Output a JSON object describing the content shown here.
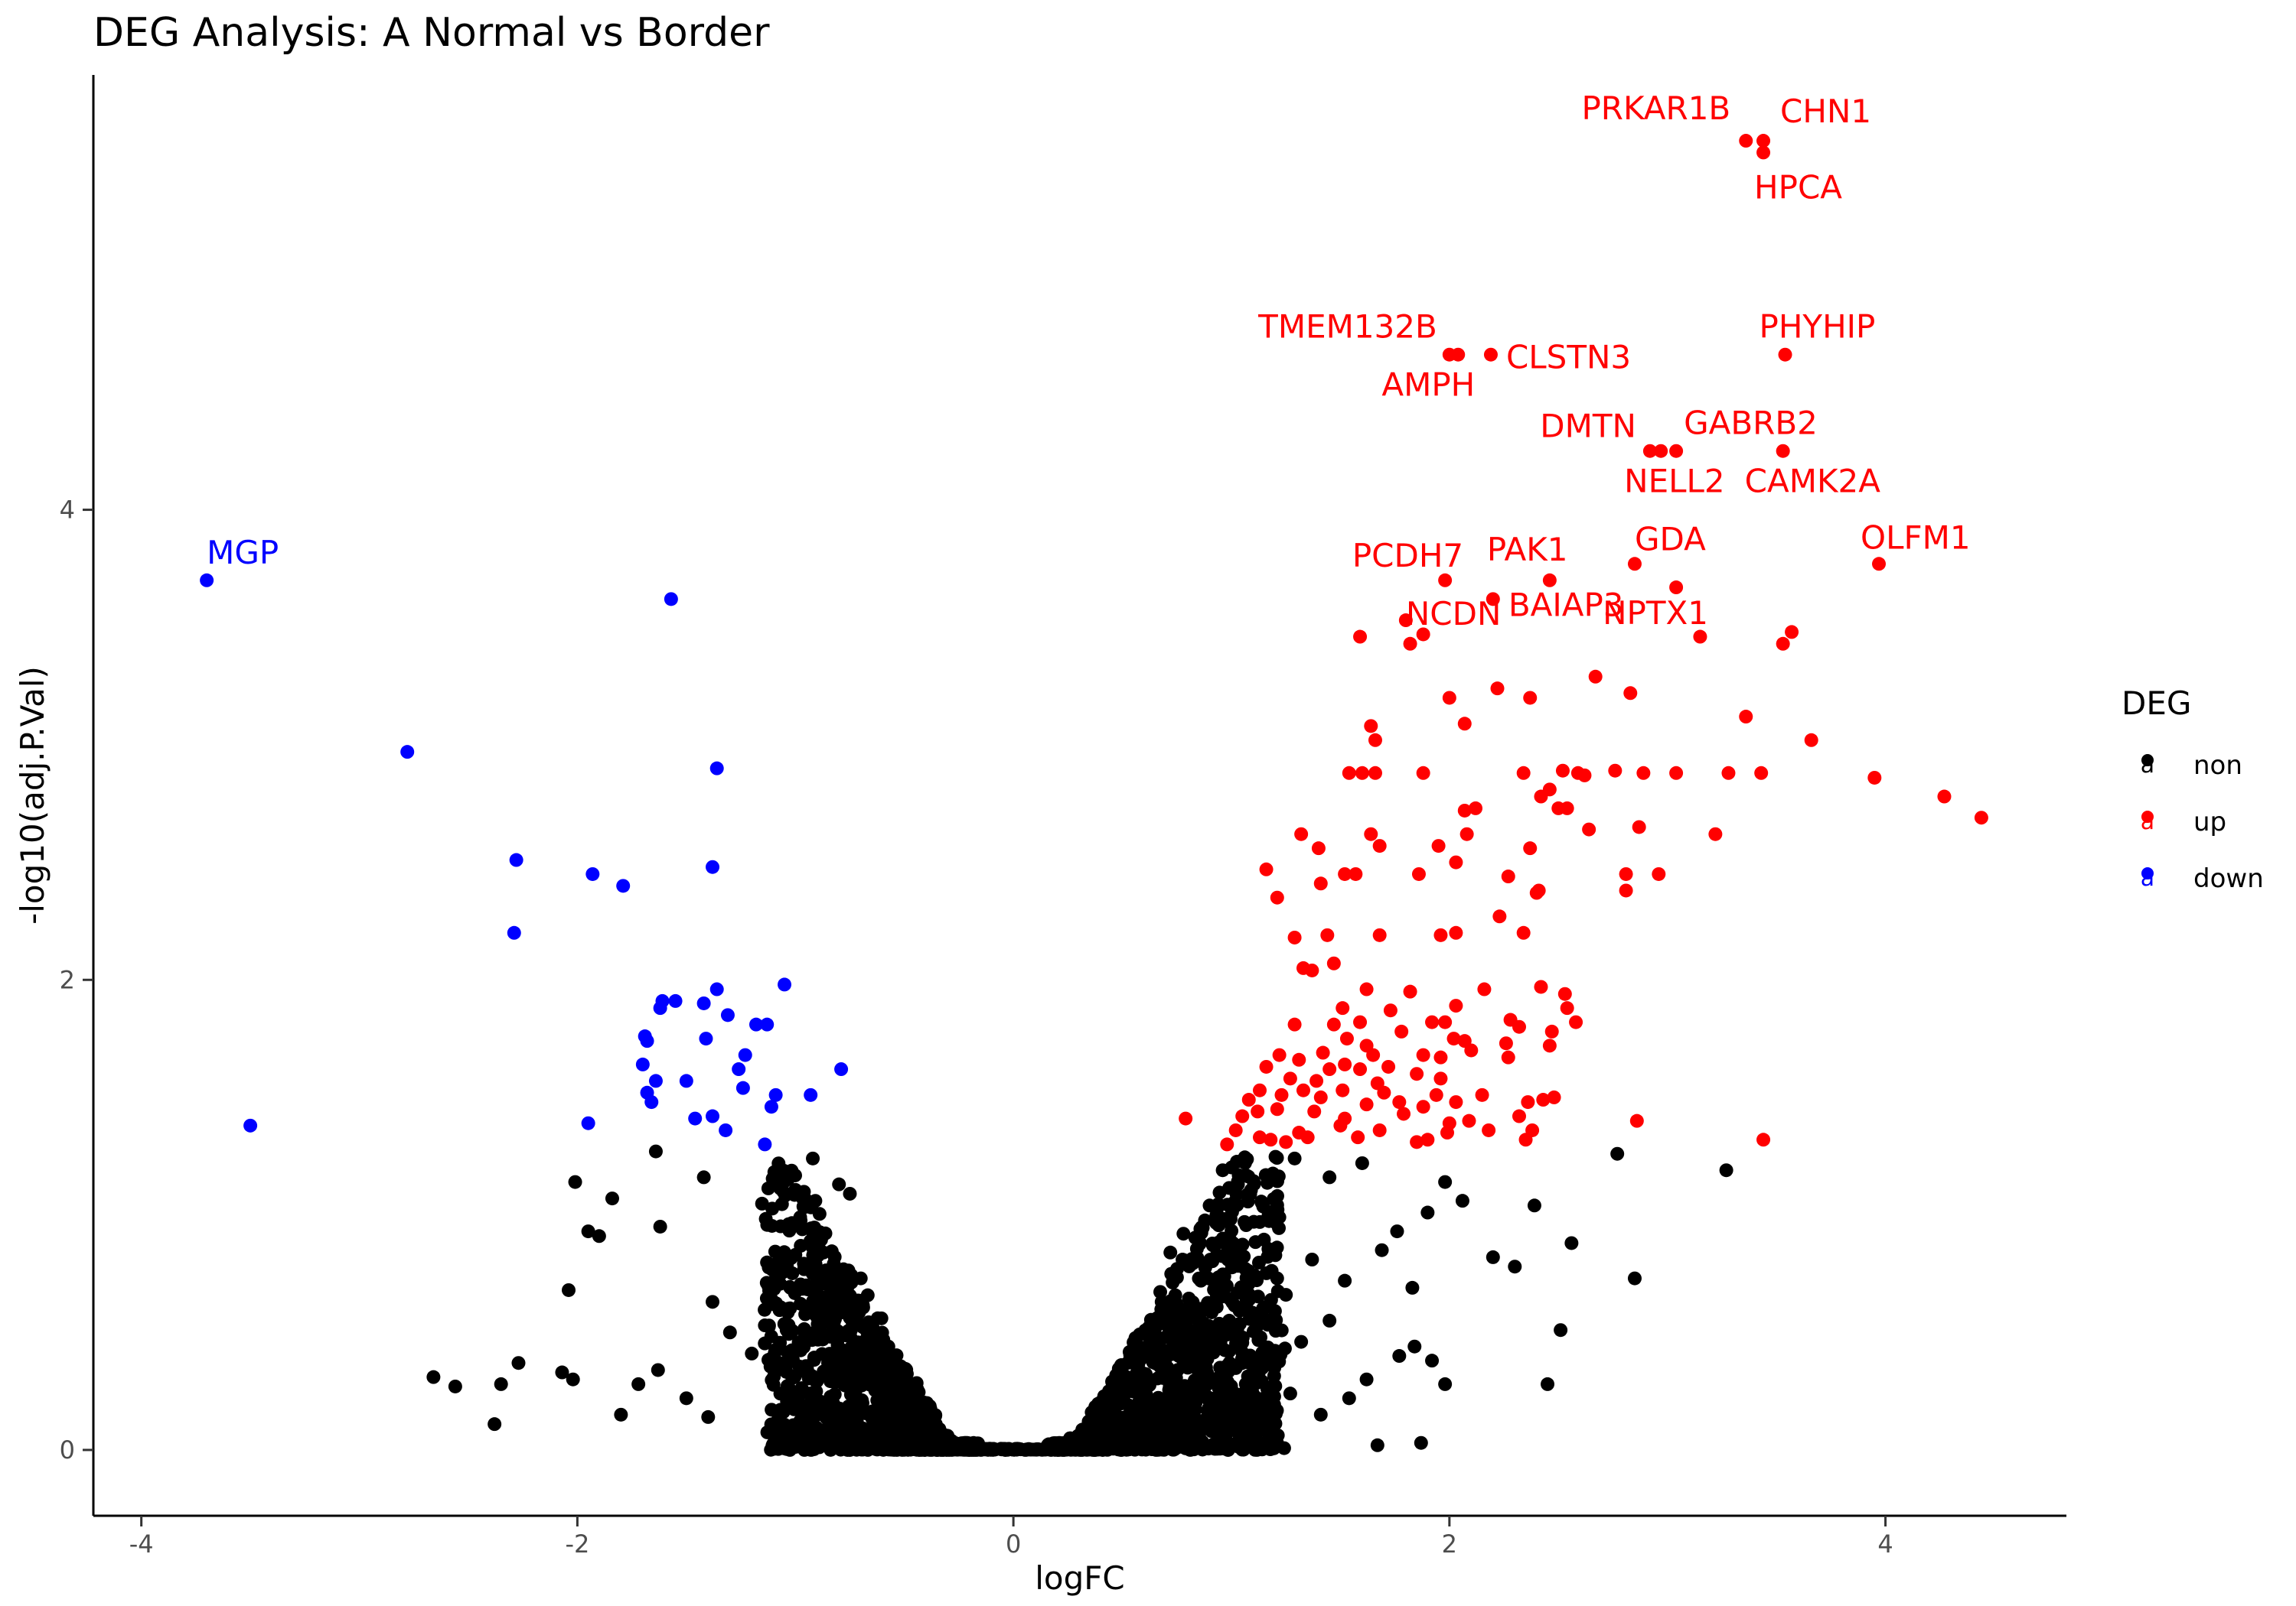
{
  "chart_data": {
    "type": "scatter",
    "title": "DEG Analysis: A Normal vs Border",
    "xlabel": "logFC",
    "ylabel": "-log10(adj.P.Val)",
    "xlim": [
      -4.22,
      4.83
    ],
    "ylim": [
      -0.28,
      5.85
    ],
    "x_ticks": [
      -4,
      -2,
      0,
      2,
      4
    ],
    "y_ticks": [
      0,
      2,
      4
    ],
    "grid": false,
    "legend": {
      "title": "DEG",
      "position": "right",
      "entries": [
        {
          "name": "non",
          "color": "#000000",
          "glyph": "a"
        },
        {
          "name": "up",
          "color": "#ff0000",
          "glyph": "a"
        },
        {
          "name": "down",
          "color": "#0000ff",
          "glyph": "a"
        }
      ]
    },
    "labeled_genes": [
      {
        "gene": "PRKAR1B",
        "x": 3.36,
        "y": 5.57,
        "group": "up"
      },
      {
        "gene": "CHN1",
        "x": 3.44,
        "y": 5.57,
        "group": "up"
      },
      {
        "gene": "HPCA",
        "x": 3.44,
        "y": 5.52,
        "group": "up"
      },
      {
        "gene": "TMEM132B",
        "x": 2.0,
        "y": 4.66,
        "group": "up"
      },
      {
        "gene": "CLSTN3",
        "x": 2.19,
        "y": 4.66,
        "group": "up"
      },
      {
        "gene": "AMPH",
        "x": 2.04,
        "y": 4.66,
        "group": "up"
      },
      {
        "gene": "PHYHIP",
        "x": 3.54,
        "y": 4.66,
        "group": "up"
      },
      {
        "gene": "DMTN",
        "x": 2.92,
        "y": 4.25,
        "group": "up"
      },
      {
        "gene": "GABRB2",
        "x": 3.04,
        "y": 4.25,
        "group": "up"
      },
      {
        "gene": "NELL2",
        "x": 2.97,
        "y": 4.25,
        "group": "up"
      },
      {
        "gene": "CAMK2A",
        "x": 3.53,
        "y": 4.25,
        "group": "up"
      },
      {
        "gene": "PCDH7",
        "x": 1.98,
        "y": 3.7,
        "group": "up"
      },
      {
        "gene": "PAK1",
        "x": 2.46,
        "y": 3.7,
        "group": "up"
      },
      {
        "gene": "GDA",
        "x": 2.85,
        "y": 3.77,
        "group": "up"
      },
      {
        "gene": "OLFM1",
        "x": 3.97,
        "y": 3.77,
        "group": "up"
      },
      {
        "gene": "BAIAP3",
        "x": 2.2,
        "y": 3.62,
        "group": "up"
      },
      {
        "gene": "NPTX1",
        "x": 3.04,
        "y": 3.67,
        "group": "up"
      },
      {
        "gene": "NCDN",
        "x": 1.8,
        "y": 3.53,
        "group": "up"
      },
      {
        "gene": "MGP",
        "x": -3.7,
        "y": 3.7,
        "group": "down"
      }
    ],
    "up_points": [
      [
        1.59,
        3.46
      ],
      [
        1.82,
        3.43
      ],
      [
        1.88,
        3.47
      ],
      [
        3.15,
        3.46
      ],
      [
        3.53,
        3.43
      ],
      [
        3.57,
        3.48
      ],
      [
        2.67,
        3.29
      ],
      [
        2.83,
        3.22
      ],
      [
        2.0,
        3.2
      ],
      [
        2.22,
        3.24
      ],
      [
        2.37,
        3.2
      ],
      [
        3.36,
        3.12
      ],
      [
        1.64,
        3.08
      ],
      [
        1.66,
        3.02
      ],
      [
        2.07,
        3.09
      ],
      [
        3.66,
        3.02
      ],
      [
        1.54,
        2.88
      ],
      [
        1.6,
        2.88
      ],
      [
        1.66,
        2.88
      ],
      [
        1.88,
        2.88
      ],
      [
        2.34,
        2.88
      ],
      [
        2.52,
        2.89
      ],
      [
        2.59,
        2.88
      ],
      [
        2.62,
        2.87
      ],
      [
        2.76,
        2.89
      ],
      [
        2.89,
        2.88
      ],
      [
        3.04,
        2.88
      ],
      [
        3.28,
        2.88
      ],
      [
        3.43,
        2.88
      ],
      [
        3.95,
        2.86
      ],
      [
        4.27,
        2.78
      ],
      [
        4.44,
        2.69
      ],
      [
        2.46,
        2.81
      ],
      [
        2.5,
        2.73
      ],
      [
        2.42,
        2.78
      ],
      [
        2.07,
        2.72
      ],
      [
        2.12,
        2.73
      ],
      [
        2.54,
        2.73
      ],
      [
        2.64,
        2.64
      ],
      [
        2.87,
        2.65
      ],
      [
        3.22,
        2.62
      ],
      [
        1.64,
        2.62
      ],
      [
        1.68,
        2.57
      ],
      [
        1.32,
        2.62
      ],
      [
        1.4,
        2.56
      ],
      [
        1.95,
        2.57
      ],
      [
        2.08,
        2.62
      ],
      [
        2.37,
        2.56
      ],
      [
        1.16,
        2.47
      ],
      [
        1.52,
        2.45
      ],
      [
        1.57,
        2.45
      ],
      [
        1.86,
        2.45
      ],
      [
        2.03,
        2.5
      ],
      [
        2.27,
        2.44
      ],
      [
        2.41,
        2.38
      ],
      [
        2.4,
        2.37
      ],
      [
        2.81,
        2.45
      ],
      [
        2.96,
        2.45
      ],
      [
        1.21,
        2.35
      ],
      [
        1.41,
        2.41
      ],
      [
        2.23,
        2.27
      ],
      [
        2.81,
        2.38
      ],
      [
        1.29,
        2.18
      ],
      [
        1.44,
        2.19
      ],
      [
        1.68,
        2.19
      ],
      [
        1.96,
        2.19
      ],
      [
        2.03,
        2.2
      ],
      [
        2.34,
        2.2
      ],
      [
        1.33,
        2.05
      ],
      [
        1.37,
        2.04
      ],
      [
        1.47,
        2.07
      ],
      [
        1.62,
        1.96
      ],
      [
        1.82,
        1.95
      ],
      [
        2.16,
        1.96
      ],
      [
        2.42,
        1.97
      ],
      [
        2.03,
        1.89
      ],
      [
        1.51,
        1.88
      ],
      [
        1.59,
        1.82
      ],
      [
        1.73,
        1.87
      ],
      [
        1.92,
        1.82
      ],
      [
        2.28,
        1.83
      ],
      [
        2.53,
        1.94
      ],
      [
        2.54,
        1.88
      ],
      [
        2.58,
        1.82
      ],
      [
        1.29,
        1.81
      ],
      [
        1.47,
        1.81
      ],
      [
        1.53,
        1.75
      ],
      [
        1.78,
        1.78
      ],
      [
        1.98,
        1.82
      ],
      [
        2.02,
        1.75
      ],
      [
        2.07,
        1.74
      ],
      [
        2.32,
        1.8
      ],
      [
        2.47,
        1.78
      ],
      [
        1.22,
        1.68
      ],
      [
        1.31,
        1.66
      ],
      [
        1.42,
        1.69
      ],
      [
        1.52,
        1.64
      ],
      [
        1.62,
        1.72
      ],
      [
        1.65,
        1.68
      ],
      [
        1.88,
        1.68
      ],
      [
        1.96,
        1.67
      ],
      [
        2.1,
        1.7
      ],
      [
        2.26,
        1.73
      ],
      [
        2.46,
        1.72
      ],
      [
        1.16,
        1.63
      ],
      [
        1.27,
        1.58
      ],
      [
        1.39,
        1.57
      ],
      [
        1.45,
        1.62
      ],
      [
        1.59,
        1.62
      ],
      [
        1.67,
        1.56
      ],
      [
        1.72,
        1.63
      ],
      [
        1.85,
        1.6
      ],
      [
        1.96,
        1.58
      ],
      [
        2.27,
        1.67
      ],
      [
        1.08,
        1.49
      ],
      [
        1.13,
        1.53
      ],
      [
        1.23,
        1.51
      ],
      [
        1.33,
        1.53
      ],
      [
        1.41,
        1.5
      ],
      [
        1.51,
        1.53
      ],
      [
        1.7,
        1.52
      ],
      [
        1.77,
        1.48
      ],
      [
        1.94,
        1.51
      ],
      [
        2.03,
        1.48
      ],
      [
        2.15,
        1.51
      ],
      [
        2.36,
        1.48
      ],
      [
        2.43,
        1.49
      ],
      [
        2.48,
        1.5
      ],
      [
        1.05,
        1.42
      ],
      [
        1.12,
        1.44
      ],
      [
        1.21,
        1.45
      ],
      [
        1.38,
        1.44
      ],
      [
        1.52,
        1.41
      ],
      [
        1.62,
        1.47
      ],
      [
        1.79,
        1.43
      ],
      [
        1.88,
        1.46
      ],
      [
        2.0,
        1.39
      ],
      [
        2.09,
        1.4
      ],
      [
        2.18,
        1.36
      ],
      [
        2.32,
        1.42
      ],
      [
        2.38,
        1.36
      ],
      [
        2.86,
        1.4
      ],
      [
        0.79,
        1.41
      ],
      [
        1.02,
        1.36
      ],
      [
        1.13,
        1.33
      ],
      [
        1.25,
        1.31
      ],
      [
        1.35,
        1.33
      ],
      [
        1.5,
        1.38
      ],
      [
        1.58,
        1.33
      ],
      [
        1.68,
        1.36
      ],
      [
        1.85,
        1.31
      ],
      [
        1.9,
        1.32
      ],
      [
        1.99,
        1.35
      ],
      [
        2.35,
        1.32
      ],
      [
        3.44,
        1.32
      ],
      [
        0.98,
        1.3
      ],
      [
        1.18,
        1.32
      ],
      [
        1.31,
        1.35
      ]
    ],
    "down_points": [
      [
        -3.5,
        1.38
      ],
      [
        -2.78,
        2.97
      ],
      [
        -2.28,
        2.51
      ],
      [
        -2.29,
        2.2
      ],
      [
        -1.93,
        2.45
      ],
      [
        -1.79,
        2.4
      ],
      [
        -1.57,
        3.62
      ],
      [
        -1.36,
        2.9
      ],
      [
        -1.38,
        2.48
      ],
      [
        -1.95,
        1.39
      ],
      [
        -1.66,
        1.48
      ],
      [
        -1.68,
        1.52
      ],
      [
        -1.64,
        1.57
      ],
      [
        -1.7,
        1.64
      ],
      [
        -1.68,
        1.74
      ],
      [
        -1.69,
        1.76
      ],
      [
        -1.62,
        1.88
      ],
      [
        -1.61,
        1.91
      ],
      [
        -1.55,
        1.91
      ],
      [
        -1.42,
        1.9
      ],
      [
        -1.36,
        1.96
      ],
      [
        -1.31,
        1.85
      ],
      [
        -1.41,
        1.75
      ],
      [
        -1.5,
        1.57
      ],
      [
        -1.46,
        1.41
      ],
      [
        -1.38,
        1.42
      ],
      [
        -1.32,
        1.36
      ],
      [
        -1.26,
        1.62
      ],
      [
        -1.23,
        1.68
      ],
      [
        -1.24,
        1.54
      ],
      [
        -1.18,
        1.81
      ],
      [
        -1.13,
        1.81
      ],
      [
        -1.11,
        1.46
      ],
      [
        -1.09,
        1.51
      ],
      [
        -1.05,
        1.98
      ],
      [
        -0.93,
        1.51
      ],
      [
        -0.79,
        1.62
      ],
      [
        -1.14,
        1.3
      ]
    ],
    "non_sample_points": [
      [
        -2.66,
        0.31
      ],
      [
        -2.56,
        0.27
      ],
      [
        -2.38,
        0.11
      ],
      [
        -2.35,
        0.28
      ],
      [
        -2.27,
        0.37
      ],
      [
        -2.07,
        0.33
      ],
      [
        -2.02,
        0.3
      ],
      [
        -2.04,
        0.68
      ],
      [
        -2.01,
        1.14
      ],
      [
        -1.95,
        0.93
      ],
      [
        -1.9,
        0.91
      ],
      [
        -1.84,
        1.07
      ],
      [
        -1.62,
        0.95
      ],
      [
        -1.64,
        1.27
      ],
      [
        -1.42,
        1.16
      ],
      [
        -0.92,
        1.24
      ],
      [
        -0.8,
        1.13
      ],
      [
        -0.75,
        1.09
      ],
      [
        -0.7,
        0.73
      ],
      [
        -0.63,
        0.45
      ],
      [
        -0.58,
        0.42
      ],
      [
        -0.52,
        0.27
      ],
      [
        -0.47,
        0.19
      ],
      [
        -0.4,
        0.09
      ],
      [
        -0.35,
        0.04
      ],
      [
        -0.3,
        0.02
      ],
      [
        -1.8,
        0.15
      ],
      [
        -1.72,
        0.28
      ],
      [
        -1.63,
        0.34
      ],
      [
        -1.5,
        0.22
      ],
      [
        -1.4,
        0.14
      ],
      [
        -1.3,
        0.5
      ],
      [
        -1.2,
        0.41
      ],
      [
        -1.1,
        0.62
      ],
      [
        -1.0,
        0.83
      ],
      [
        -0.95,
        0.7
      ],
      [
        -1.38,
        0.63
      ],
      [
        -1.14,
        0.53
      ],
      [
        -0.9,
        0.18
      ],
      [
        -0.85,
        0.37
      ],
      [
        0.26,
        0.05
      ],
      [
        0.32,
        0.08
      ],
      [
        0.38,
        0.12
      ],
      [
        0.44,
        0.22
      ],
      [
        0.52,
        0.31
      ],
      [
        0.58,
        0.39
      ],
      [
        0.62,
        0.52
      ],
      [
        0.68,
        0.63
      ],
      [
        0.72,
        0.84
      ],
      [
        0.78,
        0.92
      ],
      [
        0.86,
        0.72
      ],
      [
        0.9,
        1.04
      ],
      [
        0.96,
        1.19
      ],
      [
        1.03,
        1.13
      ],
      [
        1.06,
        0.97
      ],
      [
        1.14,
        1.05
      ],
      [
        1.22,
        0.99
      ],
      [
        1.29,
        1.24
      ],
      [
        1.37,
        0.81
      ],
      [
        1.45,
        1.16
      ],
      [
        1.52,
        0.72
      ],
      [
        1.6,
        1.22
      ],
      [
        1.69,
        0.85
      ],
      [
        1.76,
        0.93
      ],
      [
        1.83,
        0.69
      ],
      [
        1.9,
        1.01
      ],
      [
        1.98,
        1.14
      ],
      [
        2.06,
        1.06
      ],
      [
        2.2,
        0.82
      ],
      [
        2.3,
        0.78
      ],
      [
        2.39,
        1.04
      ],
      [
        2.45,
        0.28
      ],
      [
        2.51,
        0.51
      ],
      [
        2.56,
        0.88
      ],
      [
        2.77,
        1.26
      ],
      [
        2.85,
        0.73
      ],
      [
        3.27,
        1.19
      ],
      [
        1.67,
        0.02
      ],
      [
        1.87,
        0.03
      ],
      [
        1.62,
        0.3
      ],
      [
        1.77,
        0.4
      ],
      [
        1.84,
        0.44
      ],
      [
        1.92,
        0.38
      ],
      [
        1.98,
        0.28
      ],
      [
        1.54,
        0.22
      ],
      [
        1.41,
        0.15
      ],
      [
        1.32,
        0.46
      ],
      [
        1.12,
        0.38
      ],
      [
        0.99,
        0.55
      ],
      [
        1.25,
        0.66
      ],
      [
        0.95,
        0.46
      ],
      [
        0.82,
        0.27
      ],
      [
        0.74,
        0.18
      ],
      [
        0.67,
        0.11
      ],
      [
        0.54,
        0.06
      ],
      [
        1.45,
        0.55
      ],
      [
        1.27,
        0.24
      ],
      [
        1.08,
        0.12
      ],
      [
        -0.6,
        0.1
      ],
      [
        -0.7,
        0.2
      ],
      [
        -0.8,
        0.05
      ],
      [
        -0.65,
        0.3
      ]
    ]
  }
}
